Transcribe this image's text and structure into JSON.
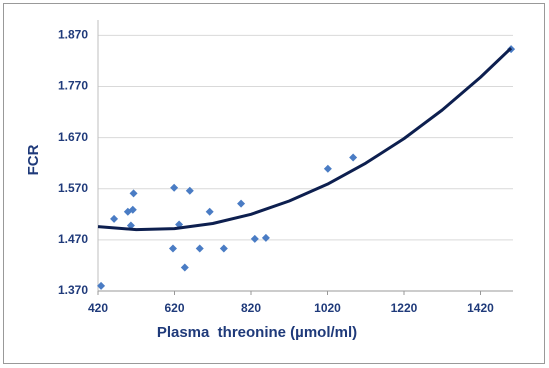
{
  "chart_data": {
    "type": "scatter",
    "x_label": "Plasma  threonine (µmol/ml)",
    "y_label": "FCR",
    "xlim": [
      420,
      1505
    ],
    "ylim": [
      1.37,
      1.9
    ],
    "xticks": [
      420,
      620,
      820,
      1020,
      1220,
      1420
    ],
    "yticks": [
      {
        "value": 1.37,
        "label": "1.370"
      },
      {
        "value": 1.47,
        "label": "1.470"
      },
      {
        "value": 1.57,
        "label": "1.570"
      },
      {
        "value": 1.67,
        "label": "1.670"
      },
      {
        "value": 1.77,
        "label": "1.770"
      },
      {
        "value": 1.87,
        "label": "1.870"
      }
    ],
    "grid": true,
    "marker_color": "#4a7cc4",
    "x": [
      428,
      462,
      498,
      511,
      513,
      506,
      619,
      632,
      616,
      647,
      660,
      686,
      712,
      749,
      794,
      830,
      859,
      1021,
      1087,
      1500
    ],
    "y": [
      1.38,
      1.511,
      1.525,
      1.529,
      1.561,
      1.498,
      1.572,
      1.5,
      1.453,
      1.416,
      1.566,
      1.453,
      1.525,
      1.453,
      1.541,
      1.472,
      1.474,
      1.609,
      1.631,
      1.843
    ],
    "trendline": {
      "color": "#0d1f4f",
      "x": [
        420,
        520,
        620,
        720,
        820,
        920,
        1020,
        1120,
        1220,
        1320,
        1420,
        1500
      ],
      "y": [
        1.496,
        1.49,
        1.492,
        1.502,
        1.52,
        1.546,
        1.579,
        1.62,
        1.668,
        1.724,
        1.788,
        1.845
      ]
    }
  }
}
